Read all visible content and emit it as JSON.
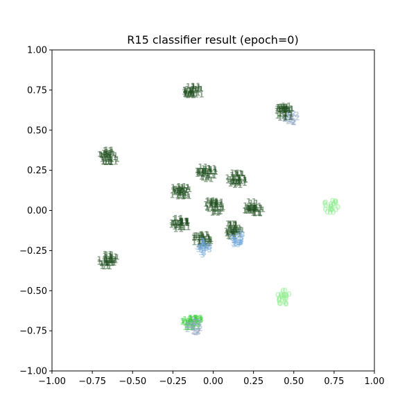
{
  "chart_data": {
    "type": "scatter",
    "title": "R15 classifier result (epoch=0)",
    "xlabel": "",
    "ylabel": "",
    "xlim": [
      -1.0,
      1.0
    ],
    "ylim": [
      -1.0,
      1.0
    ],
    "grid": false,
    "marker_style": "text labels showing predicted class",
    "xticks": [
      "−1.00",
      "−0.75",
      "−0.50",
      "−0.25",
      "0.00",
      "0.25",
      "0.50",
      "0.75",
      "1.00"
    ],
    "yticks": [
      "−1.00",
      "−0.75",
      "−0.50",
      "−0.25",
      "0.00",
      "0.25",
      "0.50",
      "0.75",
      "1.00"
    ],
    "label_colors": {
      "11": "#1e4d1e",
      "0": "#90ee90",
      "3": "#6fa8dc",
      "13": "#32cd32",
      "2": "#8fa6c4"
    },
    "clusters": [
      {
        "label": "11",
        "x": -0.13,
        "y": 0.72
      },
      {
        "label": "11",
        "x": -0.65,
        "y": 0.32
      },
      {
        "label": "11",
        "x": -0.65,
        "y": -0.33
      },
      {
        "label": "11",
        "x": -0.04,
        "y": 0.22
      },
      {
        "label": "11",
        "x": 0.15,
        "y": 0.18
      },
      {
        "label": "11",
        "x": -0.2,
        "y": 0.1
      },
      {
        "label": "11",
        "x": 0.01,
        "y": 0.01
      },
      {
        "label": "11",
        "x": 0.25,
        "y": 0.0
      },
      {
        "label": "11",
        "x": -0.2,
        "y": -0.1
      },
      {
        "label": "11",
        "x": -0.07,
        "y": -0.2
      },
      {
        "label": "11",
        "x": 0.12,
        "y": -0.14
      },
      {
        "label": "2",
        "x": 0.48,
        "y": 0.57
      },
      {
        "label": "11",
        "x": 0.44,
        "y": 0.6
      },
      {
        "label": "0",
        "x": 0.73,
        "y": 0.01
      },
      {
        "label": "0",
        "x": 0.44,
        "y": -0.56
      },
      {
        "label": "3",
        "x": 0.15,
        "y": -0.19
      },
      {
        "label": "3",
        "x": -0.06,
        "y": -0.25
      },
      {
        "label": "13",
        "x": -0.13,
        "y": -0.71
      },
      {
        "label": "2",
        "x": -0.12,
        "y": -0.74
      }
    ]
  }
}
